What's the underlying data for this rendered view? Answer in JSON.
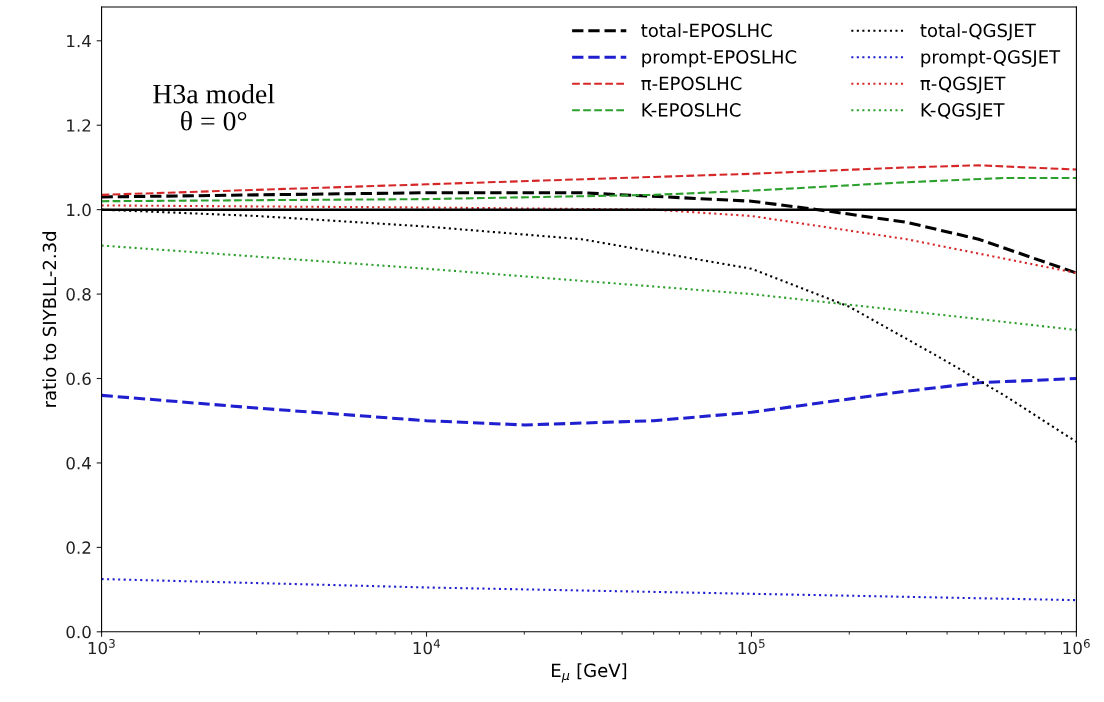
{
  "chart_data": {
    "type": "line",
    "xlabel": "E$_{μ}$ [GeV]",
    "ylabel": "ratio to SIYBLL-2.3d",
    "log": "x",
    "xlim": [
      1000,
      1000000
    ],
    "ylim": [
      0,
      1.48
    ],
    "xticks": [
      {
        "value": 1000,
        "label": "10$^{3}$"
      },
      {
        "value": 10000,
        "label": "10$^{4}$"
      },
      {
        "value": 100000,
        "label": "10$^{5}$"
      },
      {
        "value": 1000000,
        "label": "10$^{6}$"
      }
    ],
    "yticks": [
      {
        "value": 0,
        "label": "0.0"
      },
      0.2,
      0.4,
      0.6,
      0.8,
      {
        "value": 1,
        "label": "1.0"
      },
      1.2,
      1.4
    ],
    "grid": false,
    "legend": "top right",
    "annotations": [
      "H3a model\nθ = 0°"
    ],
    "ref_lines": [
      {
        "axis": "y",
        "value": 1,
        "color": "#000000",
        "line_style": "solid"
      }
    ],
    "series": [
      {
        "name": "total-EPOSLHC",
        "color": "#000000",
        "line_style": "dashed",
        "x": [
          1000,
          3000,
          10000,
          30000,
          100000,
          160000,
          300000,
          500000,
          1000000
        ],
        "values": [
          1.03,
          1.035,
          1.04,
          1.04,
          1.02,
          1.0,
          0.97,
          0.93,
          0.85
        ]
      },
      {
        "name": "prompt-EPOSLHC",
        "color": "#1f1fd0",
        "line_style": "dashed",
        "x": [
          1000,
          3000,
          10000,
          20000,
          50000,
          100000,
          300000,
          500000,
          1000000
        ],
        "values": [
          0.56,
          0.53,
          0.5,
          0.49,
          0.5,
          0.52,
          0.57,
          0.59,
          0.6
        ]
      },
      {
        "name": "π-EPOSLHC",
        "color": "#d62728",
        "line_style": "dashed",
        "x": [
          1000,
          10000,
          100000,
          300000,
          500000,
          1000000
        ],
        "values": [
          1.035,
          1.06,
          1.085,
          1.1,
          1.105,
          1.095
        ]
      },
      {
        "name": "K-EPOSLHC",
        "color": "#2ca02c",
        "line_style": "dashed",
        "x": [
          1000,
          10000,
          50000,
          100000,
          300000,
          600000,
          1000000
        ],
        "values": [
          1.02,
          1.025,
          1.035,
          1.045,
          1.065,
          1.075,
          1.075
        ]
      },
      {
        "name": "total-QGSJET",
        "color": "#000000",
        "line_style": "dotted",
        "x": [
          1000,
          3000,
          10000,
          30000,
          100000,
          200000,
          400000,
          600000,
          1000000
        ],
        "values": [
          1.0,
          0.985,
          0.96,
          0.93,
          0.86,
          0.77,
          0.64,
          0.56,
          0.45
        ]
      },
      {
        "name": "prompt-QGSJET",
        "color": "#1f1fd0",
        "line_style": "dotted",
        "x": [
          1000,
          10000,
          100000,
          1000000
        ],
        "values": [
          0.125,
          0.105,
          0.09,
          0.075
        ]
      },
      {
        "name": "π-QGSJET",
        "color": "#d62728",
        "line_style": "dotted",
        "x": [
          1000,
          10000,
          50000,
          100000,
          300000,
          1000000
        ],
        "values": [
          1.01,
          1.005,
          1.0,
          0.985,
          0.93,
          0.85
        ]
      },
      {
        "name": "K-QGSJET",
        "color": "#2ca02c",
        "line_style": "dotted",
        "x": [
          1000,
          10000,
          100000,
          300000,
          1000000
        ],
        "values": [
          0.915,
          0.86,
          0.8,
          0.76,
          0.715
        ]
      }
    ]
  }
}
